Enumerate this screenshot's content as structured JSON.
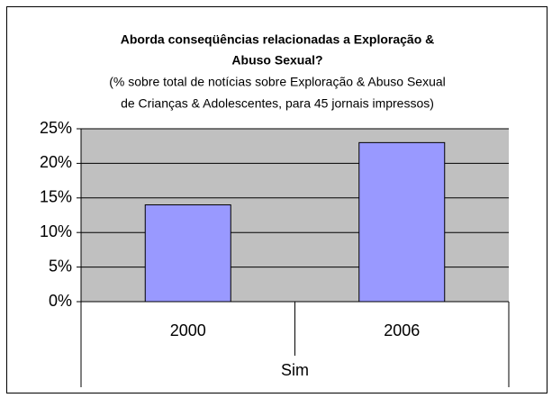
{
  "chart_data": {
    "type": "bar",
    "title": [
      "Aborda conseqüências relacionadas a Exploração &",
      "Abuso Sexual?"
    ],
    "subtitle": [
      "(% sobre total de notícias sobre Exploração & Abuso Sexual",
      "de Crianças & Adolescentes, para 45 jornais impressos)"
    ],
    "categories": [
      "2000",
      "2006"
    ],
    "category_group": "Sim",
    "values": [
      14,
      23
    ],
    "color": "#9999ff",
    "ylim": [
      0,
      25
    ],
    "yticks": [
      {
        "value": 0,
        "label": "0%"
      },
      {
        "value": 5,
        "label": "5%"
      },
      {
        "value": 10,
        "label": "10%"
      },
      {
        "value": 15,
        "label": "15%"
      },
      {
        "value": 20,
        "label": "20%"
      },
      {
        "value": 25,
        "label": "25%"
      }
    ],
    "grid": true
  }
}
